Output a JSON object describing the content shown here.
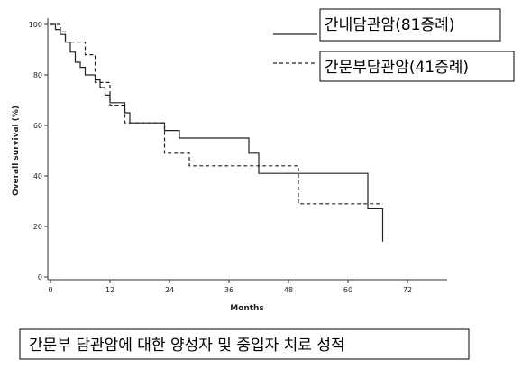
{
  "chart_data": {
    "type": "step",
    "x_label": "Months",
    "y_label": "Overall survival (%)",
    "caption": "간문부 담관암에 대한 양성자 및 중입자 치료 성적",
    "xlim": [
      0,
      80
    ],
    "xticks": [
      0,
      12,
      24,
      36,
      48,
      60,
      72
    ],
    "ylim": [
      0,
      100
    ],
    "yticks": [
      0,
      20,
      40,
      60,
      80,
      100
    ],
    "series": [
      {
        "name": "간내담관암(81증례)",
        "color": "#222222",
        "dash": false,
        "x": [
          0,
          1,
          2,
          3,
          4,
          5,
          6,
          7,
          9,
          10,
          11,
          12,
          15,
          16,
          23,
          26,
          40,
          42,
          64,
          67
        ],
        "values": [
          100,
          98,
          96,
          93,
          89,
          85,
          83,
          80,
          78,
          75,
          72,
          69,
          65,
          61,
          58,
          55,
          49,
          41,
          27,
          14
        ]
      },
      {
        "name": "간문부담관암(41증례)",
        "color": "#222222",
        "dash": true,
        "x": [
          0,
          2,
          3,
          7,
          9,
          12,
          15,
          23,
          28,
          50,
          67
        ],
        "values": [
          100,
          97,
          93,
          88,
          77,
          68,
          61,
          49,
          44,
          29,
          29
        ]
      }
    ]
  }
}
